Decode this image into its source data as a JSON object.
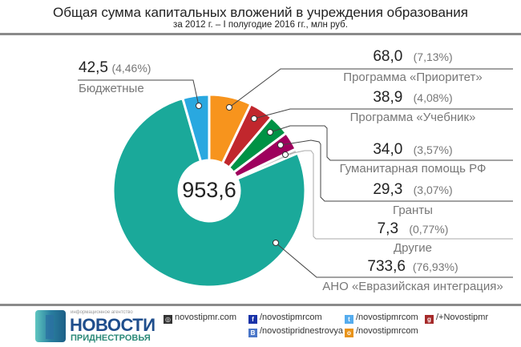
{
  "header": {
    "title": "Общая сумма капитальных вложений в учреждения образования",
    "subtitle": "за 2012 г. – I полугодие 2016 гг., млн руб."
  },
  "chart_data": {
    "type": "pie",
    "donut": true,
    "title": "Общая сумма капитальных вложений в учреждения образования",
    "subtitle": "за 2012 г. – I полугодие 2016 гг., млн руб.",
    "total": "953,6",
    "slices": [
      {
        "label": "Программа «Приоритет»",
        "value": 68.0,
        "value_text": "68,0",
        "percent_text": "(7,13%)",
        "color": "#f7941d"
      },
      {
        "label": "Программа «Учебник»",
        "value": 38.9,
        "value_text": "38,9",
        "percent_text": "(4,08%)",
        "color": "#c1272d"
      },
      {
        "label": "Гуманитарная помощь РФ",
        "value": 34.0,
        "value_text": "34,0",
        "percent_text": "(3,57%)",
        "color": "#009245"
      },
      {
        "label": "Гранты",
        "value": 29.3,
        "value_text": "29,3",
        "percent_text": "(3,07%)",
        "color": "#9e005d"
      },
      {
        "label": "Другие",
        "value": 7.3,
        "value_text": "7,3",
        "percent_text": "(0,77%)",
        "color": "#c8c8c8"
      },
      {
        "label": "АНО «Евразийская интеграция»",
        "value": 733.6,
        "value_text": "733,6",
        "percent_text": "(76,93%)",
        "color": "#1aa99a"
      },
      {
        "label": "Бюджетные",
        "value": 42.5,
        "value_text": "42,5",
        "percent_text": "(4,46%)",
        "color": "#29a8e0"
      }
    ]
  },
  "footer": {
    "logo_small": "информационное агентство",
    "logo_main": "НОВОСТИ",
    "logo_sub": "ПРИДНЕСТРОВЬЯ",
    "links": [
      {
        "icon": "globe-icon",
        "text": "novostipmr.com",
        "color": "#333333"
      },
      {
        "icon": "facebook-icon",
        "text": "/novostipmrcom",
        "color": "#1a33a8"
      },
      {
        "icon": "twitter-icon",
        "text": "/novostipmrcom",
        "color": "#55acee"
      },
      {
        "icon": "google-plus-icon",
        "text": "/+Novostipmr",
        "color": "#a52a2a"
      },
      {
        "icon": "vk-icon",
        "text": "/novostipridnestrovya",
        "color": "#4a76c8"
      },
      {
        "icon": "odnoklassniki-icon",
        "text": "/novostipmrcom",
        "color": "#e8931a"
      }
    ]
  }
}
